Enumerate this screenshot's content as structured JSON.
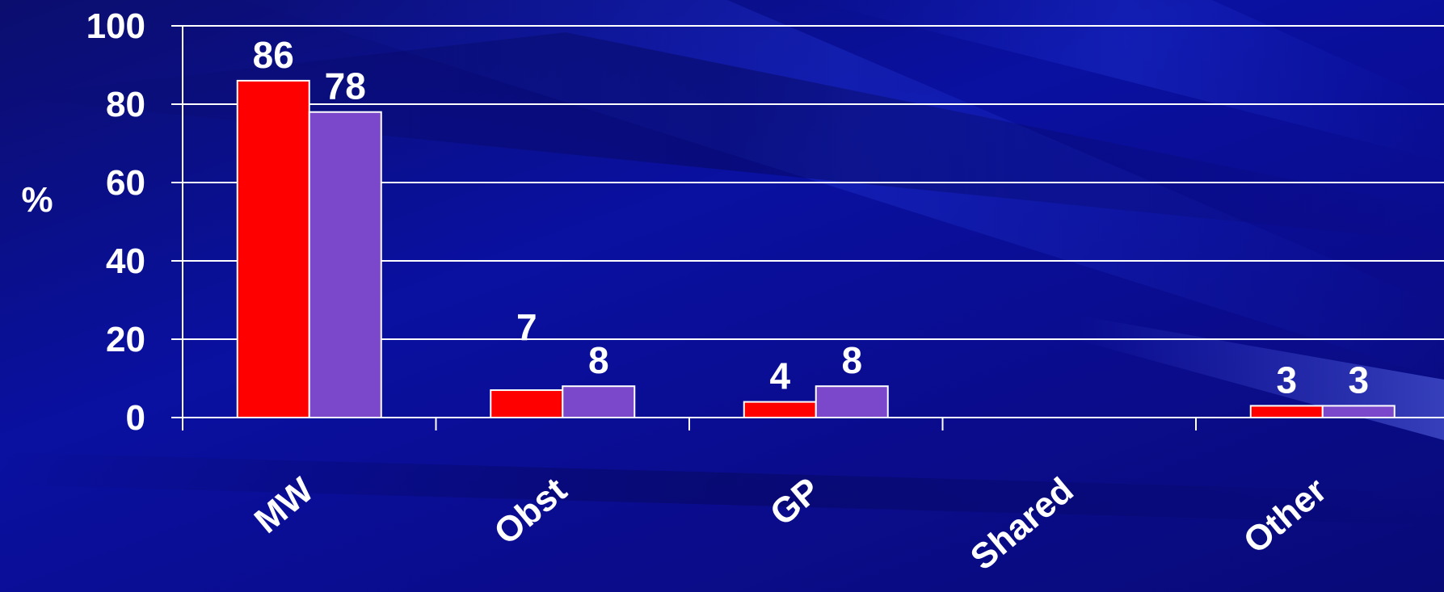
{
  "colors": {
    "background": "#0a10a0",
    "series_1": "#ff0000",
    "series_2": "#7b48cc",
    "axis": "#ffffff",
    "text": "#ffffff"
  },
  "chart_data": {
    "type": "bar",
    "title": "",
    "xlabel": "",
    "ylabel": "%",
    "ylim": [
      0,
      100
    ],
    "yticks": [
      "0",
      "20",
      "40",
      "60",
      "80",
      "100"
    ],
    "grid": true,
    "legend": "none",
    "categories": [
      "MW",
      "Obst",
      "GP",
      "Shared",
      "Other"
    ],
    "series": [
      {
        "values": [
          86,
          7,
          4,
          0,
          3
        ],
        "labels": [
          "86",
          "7",
          "4",
          "",
          "3"
        ]
      },
      {
        "values": [
          78,
          8,
          8,
          0,
          3
        ],
        "labels": [
          "78",
          "8",
          "8",
          "",
          "3"
        ]
      }
    ]
  }
}
